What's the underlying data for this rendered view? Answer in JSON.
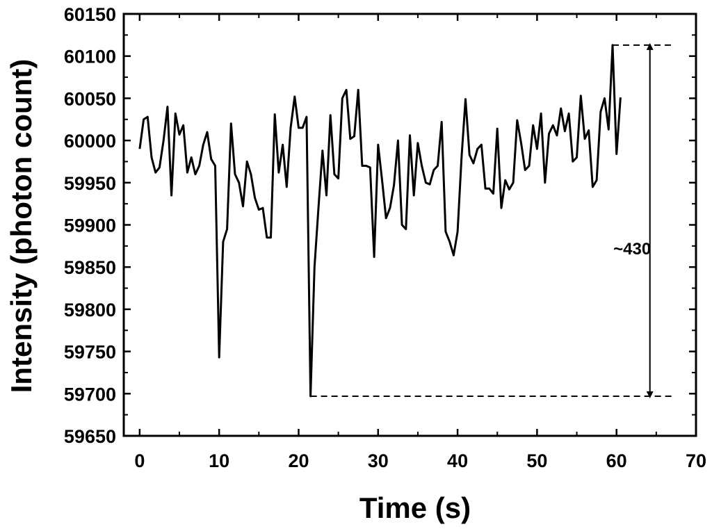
{
  "chart_data": {
    "type": "line",
    "xlabel": "Time (s)",
    "ylabel": "Intensity (photon count)",
    "xlim": [
      -2,
      70
    ],
    "ylim": [
      59650,
      60150
    ],
    "xticks": [
      0,
      10,
      20,
      30,
      40,
      50,
      60,
      70
    ],
    "yticks": [
      59650,
      59700,
      59750,
      59800,
      59850,
      59900,
      59950,
      60000,
      60050,
      60100,
      60150
    ],
    "grid": false,
    "legend": "none",
    "line_color": "#000000",
    "series": [
      {
        "x": [
          0,
          0.5,
          1,
          1.5,
          2,
          2.5,
          3,
          3.5,
          4,
          4.5,
          5,
          5.5,
          6,
          6.5,
          7,
          7.5,
          8,
          8.5,
          9,
          9.5,
          10,
          10.5,
          11,
          11.5,
          12,
          12.5,
          13,
          13.5,
          14,
          14.5,
          15,
          15.5,
          16,
          16.5,
          17,
          17.5,
          18,
          18.5,
          19,
          19.5,
          20,
          20.5,
          21,
          21.5,
          22,
          22.5,
          23,
          23.5,
          24,
          24.5,
          25,
          25.5,
          26,
          26.5,
          27,
          27.5,
          28,
          28.5,
          29,
          29.5,
          30,
          30.5,
          31,
          31.5,
          32,
          32.5,
          33,
          33.5,
          34,
          34.5,
          35,
          35.5,
          36,
          36.5,
          37,
          37.5,
          38,
          38.5,
          39,
          39.5,
          40,
          40.5,
          41,
          41.5,
          42,
          42.5,
          43,
          43.5,
          44,
          44.5,
          45,
          45.5,
          46,
          46.5,
          47,
          47.5,
          48,
          48.5,
          49,
          49.5,
          50,
          50.5,
          51,
          51.5,
          52,
          52.5,
          53,
          53.5,
          54,
          54.5,
          55,
          55.5,
          56,
          56.5,
          57,
          57.5,
          58,
          58.5,
          59,
          59.5,
          60,
          60.5
        ],
        "y": [
          59990,
          60025,
          60028,
          59980,
          59962,
          59968,
          60000,
          60040,
          59935,
          60032,
          60007,
          60018,
          59962,
          59980,
          59960,
          59970,
          59995,
          60010,
          59978,
          59970,
          59743,
          59880,
          59895,
          60020,
          59960,
          59950,
          59922,
          59975,
          59960,
          59932,
          59918,
          59920,
          59885,
          59885,
          60031,
          59962,
          59995,
          59945,
          60015,
          60052,
          60015,
          60015,
          60028,
          59697,
          59850,
          59920,
          59988,
          59935,
          60030,
          59960,
          59955,
          60050,
          60060,
          60002,
          60005,
          60060,
          59970,
          59970,
          59968,
          59862,
          59995,
          59953,
          59908,
          59920,
          59947,
          60000,
          59900,
          59895,
          60006,
          59935,
          59997,
          59970,
          59950,
          59948,
          59965,
          59970,
          60022,
          59892,
          59880,
          59864,
          59892,
          59980,
          60049,
          59983,
          59973,
          59990,
          59995,
          59943,
          59943,
          59937,
          60014,
          59920,
          59953,
          59942,
          59950,
          60024,
          59997,
          59965,
          59970,
          60018,
          59990,
          60032,
          59950,
          60008,
          60018,
          60006,
          60038,
          60011,
          60032,
          59975,
          59980,
          60053,
          60002,
          60012,
          59945,
          59953,
          60034,
          60050,
          60013,
          60113,
          59984,
          60051
        ]
      }
    ],
    "annotations": [
      {
        "type": "dashed-hline",
        "y": 60113,
        "x_from": 59.5,
        "x_to": 67
      },
      {
        "type": "dashed-hline",
        "y": 59697,
        "x_from": 21.5,
        "x_to": 67
      },
      {
        "type": "double-arrow",
        "x": 64.2,
        "y_from": 59697,
        "y_to": 60113
      },
      {
        "type": "text",
        "text": "~430",
        "x": 59.6,
        "y": 59865
      }
    ]
  }
}
